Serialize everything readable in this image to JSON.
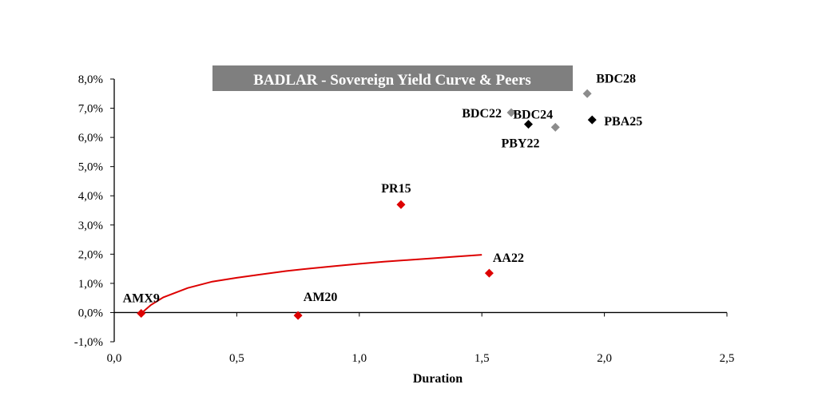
{
  "chart_data": {
    "type": "scatter",
    "title": "BADLAR - Sovereign Yield Curve & Peers",
    "xlabel": "Duration",
    "ylabel": "",
    "xlim": [
      0,
      2.5
    ],
    "ylim": [
      -1.0,
      8.0
    ],
    "x_ticks": [
      "0,0",
      "0,5",
      "1,0",
      "1,5",
      "2,0",
      "2,5"
    ],
    "y_ticks": [
      "-1,0%",
      "0,0%",
      "1,0%",
      "2,0%",
      "3,0%",
      "4,0%",
      "5,0%",
      "6,0%",
      "7,0%",
      "8,0%"
    ],
    "colors": {
      "sovereign": "#dd0000",
      "peer_gray": "#8c8c8c",
      "peer_black": "#000000",
      "title_bg": "#7f7f7f"
    },
    "points": [
      {
        "label": "AMX9",
        "x": 0.11,
        "y": -0.03,
        "group": "sovereign"
      },
      {
        "label": "AM20",
        "x": 0.75,
        "y": -0.1,
        "group": "sovereign"
      },
      {
        "label": "PR15",
        "x": 1.17,
        "y": 3.7,
        "group": "sovereign"
      },
      {
        "label": "AA22",
        "x": 1.53,
        "y": 1.35,
        "group": "sovereign"
      },
      {
        "label": "BDC22",
        "x": 1.62,
        "y": 6.85,
        "group": "peer_gray"
      },
      {
        "label": "PBY22",
        "x": 1.69,
        "y": 6.45,
        "group": "peer_black"
      },
      {
        "label": "BDC24",
        "x": 1.8,
        "y": 6.35,
        "group": "peer_gray"
      },
      {
        "label": "BDC28",
        "x": 1.93,
        "y": 7.5,
        "group": "peer_gray"
      },
      {
        "label": "PBA25",
        "x": 1.95,
        "y": 6.6,
        "group": "peer_black"
      }
    ],
    "fit_curve": {
      "type": "log",
      "x": [
        0.11,
        0.15,
        0.2,
        0.3,
        0.4,
        0.5,
        0.6,
        0.7,
        0.8,
        0.9,
        1.0,
        1.1,
        1.2,
        1.3,
        1.4,
        1.5
      ],
      "y": [
        -0.03,
        0.26,
        0.52,
        0.84,
        1.06,
        1.19,
        1.31,
        1.42,
        1.51,
        1.59,
        1.67,
        1.74,
        1.8,
        1.86,
        1.92,
        1.98
      ]
    }
  }
}
